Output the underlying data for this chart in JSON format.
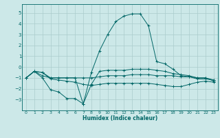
{
  "xlabel": "Humidex (Indice chaleur)",
  "ylabel": "",
  "bg_color": "#cce8e8",
  "grid_color": "#aacccc",
  "line_color": "#006666",
  "xlim": [
    -0.5,
    23.5
  ],
  "ylim": [
    -4.0,
    5.8
  ],
  "xticks": [
    0,
    1,
    2,
    3,
    4,
    5,
    6,
    7,
    8,
    9,
    10,
    11,
    12,
    13,
    14,
    15,
    16,
    17,
    18,
    19,
    20,
    21,
    22,
    23
  ],
  "yticks": [
    -3,
    -2,
    -1,
    0,
    1,
    2,
    3,
    4,
    5
  ],
  "line1_x": [
    0,
    1,
    2,
    3,
    4,
    5,
    6,
    7,
    8,
    9,
    10,
    11,
    12,
    13,
    14,
    15,
    16,
    17,
    18,
    19,
    20,
    21,
    22,
    23
  ],
  "line1_y": [
    -1.0,
    -0.4,
    -0.8,
    -1.0,
    -1.0,
    -1.0,
    -1.0,
    -1.0,
    -1.0,
    -0.9,
    -0.8,
    -0.8,
    -0.8,
    -0.7,
    -0.7,
    -0.7,
    -0.8,
    -0.8,
    -0.8,
    -0.9,
    -0.9,
    -1.0,
    -1.0,
    -1.2
  ],
  "line2_x": [
    0,
    1,
    2,
    3,
    4,
    5,
    6,
    7,
    8,
    9,
    10,
    11,
    12,
    13,
    14,
    15,
    16,
    17,
    18,
    19,
    20,
    21,
    22,
    23
  ],
  "line2_y": [
    -1.0,
    -0.4,
    -1.0,
    -2.1,
    -2.3,
    -2.9,
    -2.9,
    -3.4,
    -1.6,
    -0.4,
    -0.3,
    -0.3,
    -0.3,
    -0.2,
    -0.2,
    -0.2,
    -0.3,
    -0.4,
    -0.6,
    -0.7,
    -0.8,
    -1.0,
    -1.0,
    -1.3
  ],
  "line3_x": [
    0,
    1,
    2,
    3,
    4,
    5,
    6,
    7,
    8,
    9,
    10,
    11,
    12,
    13,
    14,
    15,
    16,
    17,
    18,
    19,
    20,
    21,
    22,
    23
  ],
  "line3_y": [
    -1.0,
    -0.4,
    -0.5,
    -1.1,
    -1.2,
    -1.3,
    -1.4,
    -1.6,
    -1.7,
    -1.6,
    -1.5,
    -1.5,
    -1.5,
    -1.5,
    -1.5,
    -1.5,
    -1.6,
    -1.7,
    -1.8,
    -1.8,
    -1.6,
    -1.4,
    -1.3,
    -1.4
  ],
  "line4_x": [
    0,
    1,
    2,
    3,
    4,
    5,
    6,
    7,
    8,
    9,
    10,
    11,
    12,
    13,
    14,
    15,
    16,
    17,
    18,
    19,
    20,
    21,
    22,
    23
  ],
  "line4_y": [
    -1.0,
    -0.4,
    -0.5,
    -1.0,
    -1.0,
    -1.0,
    -1.0,
    -3.4,
    -0.5,
    1.5,
    3.0,
    4.2,
    4.7,
    4.9,
    4.9,
    3.8,
    0.5,
    0.3,
    -0.2,
    -0.8,
    -0.9,
    -1.1,
    -1.1,
    -1.2
  ]
}
